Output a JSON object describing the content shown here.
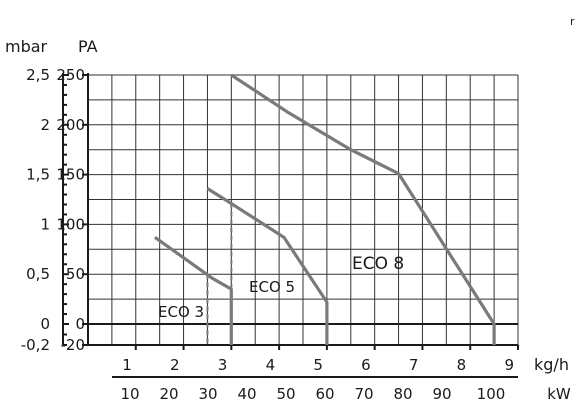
{
  "chart_data": {
    "type": "line",
    "y_units": {
      "mbar": "mbar",
      "pa": "PA"
    },
    "x_units": {
      "flow": "kg/h",
      "power": "kW"
    },
    "y_pa_ticks": [
      250,
      200,
      150,
      100,
      50,
      0,
      -20
    ],
    "y_mbar_ticks": [
      "2,5",
      "2",
      "1,5",
      "1",
      "0,5",
      "0",
      "-0,2"
    ],
    "x_flow_ticks": [
      1,
      2,
      3,
      4,
      5,
      6,
      7,
      8,
      9
    ],
    "x_kw_ticks": [
      10,
      20,
      30,
      40,
      50,
      60,
      70,
      80,
      90,
      100,
      "kW"
    ],
    "xlim_flow": [
      0,
      9
    ],
    "ylim_pa": [
      -20,
      250
    ],
    "grid": true,
    "corner_mark": "r",
    "series": [
      {
        "name": "ECO 3",
        "points": [
          [
            1.4,
            87
          ],
          [
            2.6,
            46
          ],
          [
            3.0,
            35
          ],
          [
            3.0,
            -20
          ]
        ],
        "dashed_from": [
          2.5,
          50,
          2.5,
          -20
        ]
      },
      {
        "name": "ECO 5",
        "points": [
          [
            2.5,
            136
          ],
          [
            3.0,
            121
          ],
          [
            4.1,
            87
          ],
          [
            5.0,
            22
          ],
          [
            5.0,
            -20
          ]
        ],
        "dashed_from": [
          3.0,
          121,
          3.0,
          35
        ]
      },
      {
        "name": "ECO 8",
        "points": [
          [
            3.0,
            250
          ],
          [
            4.2,
            212
          ],
          [
            5.5,
            175
          ],
          [
            6.5,
            151
          ],
          [
            8.5,
            0
          ],
          [
            8.5,
            -20
          ]
        ]
      }
    ]
  }
}
